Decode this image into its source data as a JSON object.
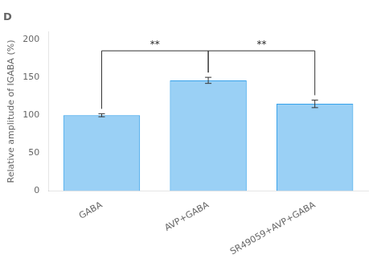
{
  "chart_data": {
    "type": "bar",
    "title": "D",
    "categories": [
      "GABA",
      "AVP+GABA",
      "SR49059+AVP+GABA"
    ],
    "values": [
      100,
      146,
      115
    ],
    "errors": [
      2,
      4,
      5
    ],
    "ylabel": "Relative amplitude of IGABA (%)",
    "ylim": [
      0,
      210
    ],
    "yticks": [
      0,
      50,
      100,
      150,
      200
    ],
    "grid": false,
    "annotations": [
      {
        "text": "**",
        "from": 0,
        "to": 1,
        "y": 185
      },
      {
        "text": "**",
        "from": 1,
        "to": 2,
        "y": 185
      }
    ]
  }
}
